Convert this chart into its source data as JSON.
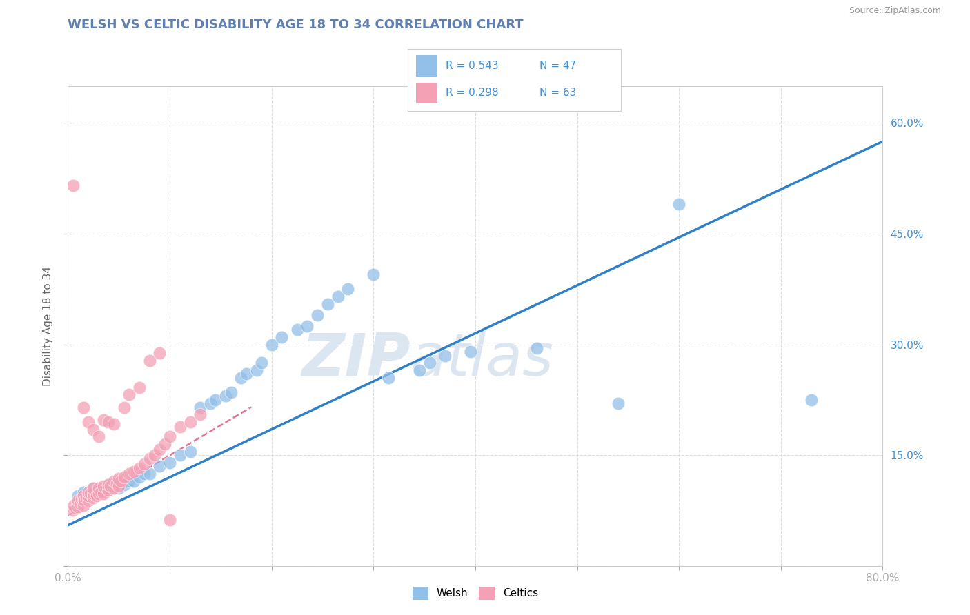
{
  "title": "WELSH VS CELTIC DISABILITY AGE 18 TO 34 CORRELATION CHART",
  "source_text": "Source: ZipAtlas.com",
  "ylabel": "Disability Age 18 to 34",
  "xlim": [
    0.0,
    0.8
  ],
  "ylim": [
    0.0,
    0.65
  ],
  "xticks": [
    0.0,
    0.1,
    0.2,
    0.3,
    0.4,
    0.5,
    0.6,
    0.7,
    0.8
  ],
  "yticks": [
    0.0,
    0.15,
    0.3,
    0.45,
    0.6
  ],
  "xtick_labels": [
    "0.0%",
    "",
    "",
    "",
    "",
    "",
    "",
    "",
    "80.0%"
  ],
  "ytick_labels": [
    "",
    "15.0%",
    "30.0%",
    "45.0%",
    "60.0%"
  ],
  "welsh_R": 0.543,
  "welsh_N": 47,
  "celtics_R": 0.298,
  "celtics_N": 63,
  "welsh_color": "#92c0e8",
  "celtics_color": "#f4a0b5",
  "welsh_trendline_color": "#3080c8",
  "celtics_trendline_color": "#e87090",
  "background_color": "#ffffff",
  "grid_color": "#dddddd",
  "title_color": "#6080b0",
  "watermark_color": "#dce6f0",
  "legend_text_color": "#4090d0",
  "welsh_trendline_x": [
    0.0,
    0.8
  ],
  "welsh_trendline_y": [
    0.055,
    0.575
  ],
  "celtics_trendline_x": [
    0.0,
    0.18
  ],
  "celtics_trendline_y": [
    0.068,
    0.215
  ],
  "welsh_scatter": [
    [
      0.01,
      0.095
    ],
    [
      0.015,
      0.1
    ],
    [
      0.02,
      0.1
    ],
    [
      0.025,
      0.105
    ],
    [
      0.03,
      0.1
    ],
    [
      0.035,
      0.1
    ],
    [
      0.04,
      0.105
    ],
    [
      0.04,
      0.11
    ],
    [
      0.045,
      0.11
    ],
    [
      0.05,
      0.105
    ],
    [
      0.055,
      0.11
    ],
    [
      0.06,
      0.115
    ],
    [
      0.065,
      0.115
    ],
    [
      0.07,
      0.12
    ],
    [
      0.075,
      0.125
    ],
    [
      0.08,
      0.125
    ],
    [
      0.09,
      0.135
    ],
    [
      0.1,
      0.14
    ],
    [
      0.11,
      0.15
    ],
    [
      0.12,
      0.155
    ],
    [
      0.13,
      0.215
    ],
    [
      0.14,
      0.22
    ],
    [
      0.145,
      0.225
    ],
    [
      0.155,
      0.23
    ],
    [
      0.16,
      0.235
    ],
    [
      0.17,
      0.255
    ],
    [
      0.175,
      0.26
    ],
    [
      0.185,
      0.265
    ],
    [
      0.19,
      0.275
    ],
    [
      0.2,
      0.3
    ],
    [
      0.21,
      0.31
    ],
    [
      0.225,
      0.32
    ],
    [
      0.235,
      0.325
    ],
    [
      0.245,
      0.34
    ],
    [
      0.255,
      0.355
    ],
    [
      0.265,
      0.365
    ],
    [
      0.275,
      0.375
    ],
    [
      0.3,
      0.395
    ],
    [
      0.315,
      0.255
    ],
    [
      0.345,
      0.265
    ],
    [
      0.355,
      0.275
    ],
    [
      0.37,
      0.285
    ],
    [
      0.395,
      0.29
    ],
    [
      0.46,
      0.295
    ],
    [
      0.54,
      0.22
    ],
    [
      0.6,
      0.49
    ],
    [
      0.73,
      0.225
    ]
  ],
  "celtics_scatter": [
    [
      0.005,
      0.075
    ],
    [
      0.006,
      0.082
    ],
    [
      0.008,
      0.078
    ],
    [
      0.009,
      0.085
    ],
    [
      0.01,
      0.08
    ],
    [
      0.01,
      0.088
    ],
    [
      0.012,
      0.085
    ],
    [
      0.013,
      0.09
    ],
    [
      0.015,
      0.082
    ],
    [
      0.015,
      0.09
    ],
    [
      0.015,
      0.095
    ],
    [
      0.016,
      0.088
    ],
    [
      0.018,
      0.092
    ],
    [
      0.02,
      0.088
    ],
    [
      0.02,
      0.095
    ],
    [
      0.02,
      0.1
    ],
    [
      0.022,
      0.098
    ],
    [
      0.025,
      0.092
    ],
    [
      0.025,
      0.098
    ],
    [
      0.025,
      0.105
    ],
    [
      0.028,
      0.095
    ],
    [
      0.03,
      0.098
    ],
    [
      0.03,
      0.105
    ],
    [
      0.032,
      0.1
    ],
    [
      0.035,
      0.098
    ],
    [
      0.035,
      0.108
    ],
    [
      0.038,
      0.105
    ],
    [
      0.04,
      0.102
    ],
    [
      0.04,
      0.11
    ],
    [
      0.042,
      0.108
    ],
    [
      0.045,
      0.105
    ],
    [
      0.045,
      0.115
    ],
    [
      0.048,
      0.112
    ],
    [
      0.05,
      0.108
    ],
    [
      0.05,
      0.118
    ],
    [
      0.052,
      0.115
    ],
    [
      0.055,
      0.12
    ],
    [
      0.06,
      0.125
    ],
    [
      0.065,
      0.128
    ],
    [
      0.07,
      0.132
    ],
    [
      0.075,
      0.138
    ],
    [
      0.08,
      0.145
    ],
    [
      0.085,
      0.15
    ],
    [
      0.09,
      0.158
    ],
    [
      0.095,
      0.165
    ],
    [
      0.1,
      0.175
    ],
    [
      0.11,
      0.188
    ],
    [
      0.12,
      0.195
    ],
    [
      0.13,
      0.205
    ],
    [
      0.005,
      0.515
    ],
    [
      0.015,
      0.215
    ],
    [
      0.02,
      0.195
    ],
    [
      0.025,
      0.185
    ],
    [
      0.03,
      0.175
    ],
    [
      0.035,
      0.198
    ],
    [
      0.04,
      0.195
    ],
    [
      0.045,
      0.192
    ],
    [
      0.055,
      0.215
    ],
    [
      0.06,
      0.232
    ],
    [
      0.07,
      0.242
    ],
    [
      0.08,
      0.278
    ],
    [
      0.09,
      0.288
    ],
    [
      0.1,
      0.062
    ]
  ]
}
